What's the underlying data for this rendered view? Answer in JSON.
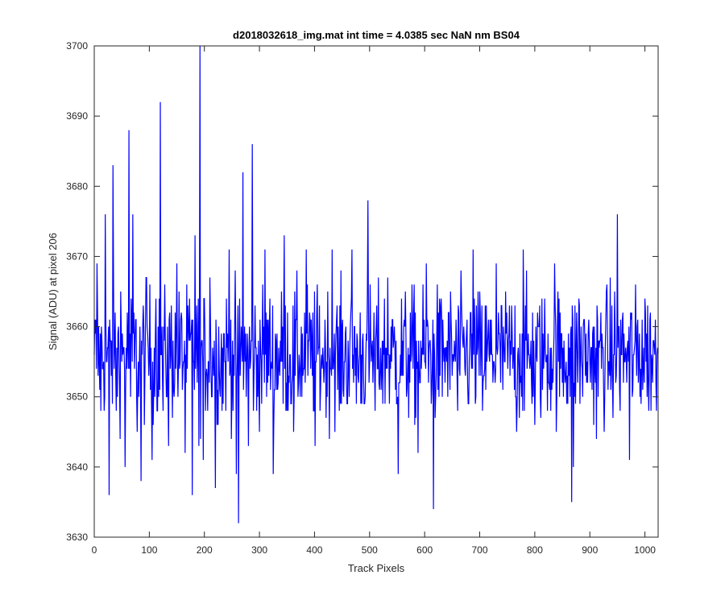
{
  "chart_data": {
    "type": "line",
    "title": "d2018032618_img.mat int time = 4.0385 sec  NaN nm BS04",
    "xlabel": "Track Pixels",
    "ylabel": "Signal (ADU) at pixel 206",
    "xlim": [
      0,
      1024
    ],
    "ylim": [
      3630,
      3700
    ],
    "xticks": [
      0,
      100,
      200,
      300,
      400,
      500,
      600,
      700,
      800,
      900,
      1000
    ],
    "yticks": [
      3630,
      3640,
      3650,
      3660,
      3670,
      3680,
      3690,
      3700
    ],
    "grid": false,
    "line_color": "#0000ff",
    "series": [
      {
        "n_points": 1024,
        "mean": 3656,
        "noise_range": [
          3643,
          3669
        ],
        "x": [
          0,
          5,
          12,
          20,
          27,
          34,
          40,
          48,
          56,
          63,
          66,
          70,
          78,
          85,
          95,
          105,
          112,
          120,
          125,
          135,
          150,
          165,
          178,
          183,
          190,
          192,
          198,
          210,
          220,
          232,
          245,
          258,
          262,
          270,
          280,
          287,
          295,
          310,
          325,
          345,
          362,
          385,
          401,
          432,
          445,
          468,
          480,
          497,
          510,
          533,
          552,
          588,
          603,
          616,
          625,
          660,
          688,
          705,
          730,
          767,
          779,
          800,
          836,
          867,
          870,
          880,
          912,
          950,
          972,
          1000,
          1024
        ],
        "y": [
          3656,
          3669,
          3648,
          3676,
          3636,
          3683,
          3648,
          3665,
          3640,
          3688,
          3650,
          3676,
          3645,
          3638,
          3667,
          3641,
          3664,
          3692,
          3648,
          3643,
          3669,
          3642,
          3636,
          3673,
          3643,
          3700,
          3641,
          3667,
          3637,
          3648,
          3671,
          3639,
          3632,
          3682,
          3643,
          3686,
          3648,
          3671,
          3639,
          3673,
          3645,
          3671,
          3643,
          3671,
          3648,
          3671,
          3652,
          3678,
          3648,
          3667,
          3639,
          3642,
          3669,
          3634,
          3662,
          3648,
          3671,
          3648,
          3669,
          3645,
          3671,
          3646,
          3669,
          3635,
          3640,
          3664,
          3644,
          3676,
          3641,
          3664,
          3670
        ]
      }
    ]
  }
}
